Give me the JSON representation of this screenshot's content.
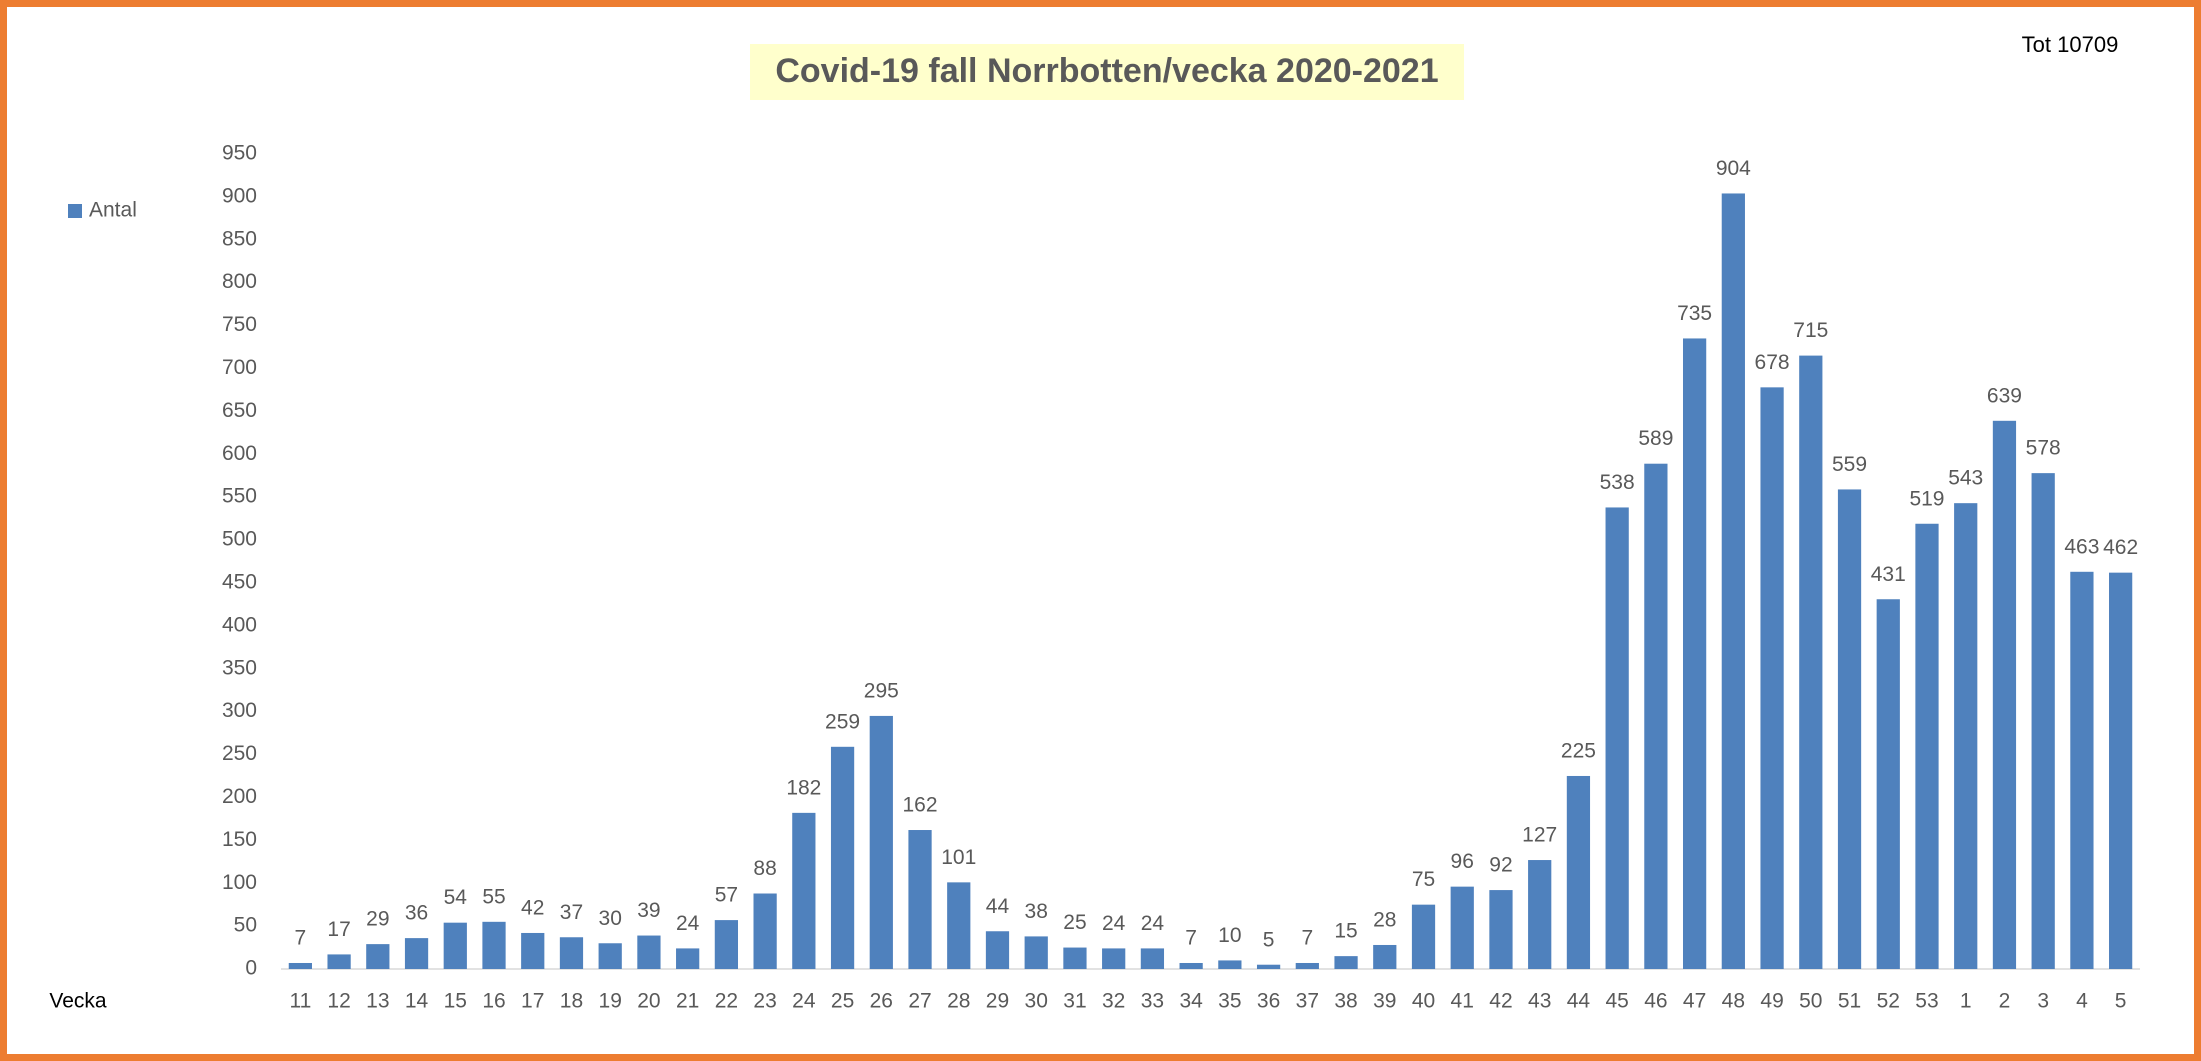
{
  "chart_data": {
    "type": "bar",
    "title": "Covid-19 fall Norrbotten/vecka 2020-2021",
    "annotation": "Tot 10709",
    "x_label": "Vecka",
    "categories": [
      "11",
      "12",
      "13",
      "14",
      "15",
      "16",
      "17",
      "18",
      "19",
      "20",
      "21",
      "22",
      "23",
      "24",
      "25",
      "26",
      "27",
      "28",
      "29",
      "30",
      "31",
      "32",
      "33",
      "34",
      "35",
      "36",
      "37",
      "38",
      "39",
      "40",
      "41",
      "42",
      "43",
      "44",
      "45",
      "46",
      "47",
      "48",
      "49",
      "50",
      "51",
      "52",
      "53",
      "1",
      "2",
      "3",
      "4",
      "5"
    ],
    "series": [
      {
        "name": "Antal",
        "color": "#4f81bd",
        "values": [
          7,
          17,
          29,
          36,
          54,
          55,
          42,
          37,
          30,
          39,
          24,
          57,
          88,
          182,
          259,
          295,
          162,
          101,
          44,
          38,
          25,
          24,
          24,
          7,
          10,
          5,
          7,
          15,
          28,
          75,
          96,
          92,
          127,
          225,
          538,
          589,
          735,
          904,
          678,
          715,
          559,
          431,
          519,
          543,
          639,
          578,
          463,
          462
        ]
      }
    ],
    "ylim": [
      0,
      950
    ],
    "yticks": [
      0,
      50,
      100,
      150,
      200,
      250,
      300,
      350,
      400,
      450,
      500,
      550,
      600,
      650,
      700,
      750,
      800,
      850,
      900,
      950
    ],
    "grid": false,
    "legend": "left"
  }
}
